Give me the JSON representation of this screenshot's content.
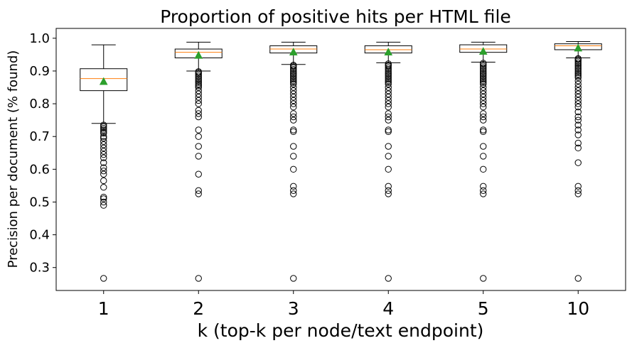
{
  "chart_data": {
    "type": "box",
    "title": "Proportion of positive hits per HTML file",
    "xlabel": "k (top-k per node/text endpoint)",
    "ylabel": "Precision per document (% found)",
    "categories": [
      "1",
      "2",
      "3",
      "4",
      "5",
      "10"
    ],
    "yticks": [
      "0.3",
      "0.4",
      "0.5",
      "0.6",
      "0.7",
      "0.8",
      "0.9",
      "1.0"
    ],
    "ylim": [
      0.23,
      1.03
    ],
    "grid": false,
    "colors": {
      "box": "#000000",
      "median": "#ff7f0e",
      "mean_marker": "#2ca02c",
      "flier": "#000000"
    },
    "boxes": [
      {
        "category": "1",
        "whisker_low": 0.74,
        "q1": 0.84,
        "median": 0.877,
        "q3": 0.907,
        "whisker_high": 0.98,
        "mean": 0.868,
        "fliers": [
          0.735,
          0.73,
          0.725,
          0.72,
          0.715,
          0.71,
          0.7,
          0.695,
          0.685,
          0.675,
          0.665,
          0.655,
          0.645,
          0.635,
          0.62,
          0.605,
          0.595,
          0.585,
          0.565,
          0.545,
          0.515,
          0.51,
          0.5,
          0.49,
          0.267
        ]
      },
      {
        "category": "2",
        "whisker_low": 0.9,
        "q1": 0.94,
        "median": 0.957,
        "q3": 0.967,
        "whisker_high": 0.988,
        "mean": 0.948,
        "fliers": [
          0.898,
          0.895,
          0.89,
          0.885,
          0.88,
          0.875,
          0.87,
          0.865,
          0.86,
          0.855,
          0.85,
          0.84,
          0.83,
          0.82,
          0.81,
          0.8,
          0.78,
          0.77,
          0.76,
          0.72,
          0.7,
          0.67,
          0.64,
          0.585,
          0.535,
          0.525,
          0.267
        ]
      },
      {
        "category": "3",
        "whisker_low": 0.92,
        "q1": 0.955,
        "median": 0.967,
        "q3": 0.977,
        "whisker_high": 0.988,
        "mean": 0.958,
        "fliers": [
          0.918,
          0.915,
          0.91,
          0.905,
          0.9,
          0.895,
          0.89,
          0.885,
          0.88,
          0.875,
          0.87,
          0.865,
          0.86,
          0.85,
          0.84,
          0.83,
          0.82,
          0.81,
          0.8,
          0.79,
          0.77,
          0.76,
          0.75,
          0.72,
          0.715,
          0.67,
          0.64,
          0.6,
          0.548,
          0.535,
          0.525,
          0.267
        ]
      },
      {
        "category": "4",
        "whisker_low": 0.925,
        "q1": 0.955,
        "median": 0.965,
        "q3": 0.977,
        "whisker_high": 0.988,
        "mean": 0.958,
        "fliers": [
          0.922,
          0.918,
          0.915,
          0.91,
          0.905,
          0.9,
          0.895,
          0.89,
          0.885,
          0.88,
          0.875,
          0.87,
          0.865,
          0.86,
          0.85,
          0.84,
          0.83,
          0.82,
          0.81,
          0.8,
          0.79,
          0.77,
          0.76,
          0.75,
          0.72,
          0.715,
          0.67,
          0.64,
          0.6,
          0.548,
          0.535,
          0.525,
          0.267
        ]
      },
      {
        "category": "5",
        "whisker_low": 0.927,
        "q1": 0.957,
        "median": 0.967,
        "q3": 0.98,
        "whisker_high": 0.988,
        "mean": 0.96,
        "fliers": [
          0.924,
          0.92,
          0.915,
          0.91,
          0.905,
          0.9,
          0.895,
          0.89,
          0.885,
          0.88,
          0.875,
          0.87,
          0.865,
          0.86,
          0.85,
          0.84,
          0.83,
          0.82,
          0.81,
          0.8,
          0.79,
          0.77,
          0.76,
          0.75,
          0.72,
          0.715,
          0.67,
          0.64,
          0.6,
          0.548,
          0.535,
          0.525,
          0.267
        ]
      },
      {
        "category": "10",
        "whisker_low": 0.94,
        "q1": 0.965,
        "median": 0.977,
        "q3": 0.983,
        "whisker_high": 0.99,
        "mean": 0.97,
        "fliers": [
          0.938,
          0.935,
          0.93,
          0.925,
          0.92,
          0.915,
          0.91,
          0.905,
          0.9,
          0.895,
          0.89,
          0.885,
          0.88,
          0.87,
          0.86,
          0.85,
          0.84,
          0.83,
          0.82,
          0.81,
          0.8,
          0.79,
          0.775,
          0.76,
          0.75,
          0.735,
          0.72,
          0.705,
          0.68,
          0.665,
          0.62,
          0.548,
          0.535,
          0.525,
          0.267
        ]
      }
    ]
  }
}
